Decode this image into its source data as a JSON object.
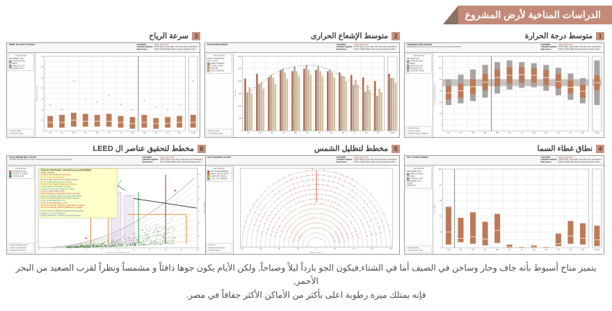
{
  "page_title": "الدراسات المناخية لأرض المشروع",
  "caption": {
    "line1": "يتميز مناخ أسيوط بأنه جاف وحار وساخن في الصيف أما في الشتاء,فيكون الجو بارداً ليلاً وصباحاً, ولكن الأيام يكون جوها دافئاً و مشمساً ونظراً لقرب الصعيد من البحر الأحمر,",
    "line2": "فإنه يمتلك ميزة رطوبة اعلى بأكثر من الأماكن الأكثر جفافاً في مصر."
  },
  "theme": {
    "ribbon": "#c48a79",
    "ribbon_triangle": "#8c7165",
    "badge": "#c8937f",
    "bar_orange": "#bd7a58",
    "bar_gray": "#a9a3a0",
    "comfort_band": "#c9c5c2"
  },
  "location_block": {
    "location_label": "LOCATION:",
    "location": "Asyut, Asyut, EGY",
    "latlon_label": "Latitude/Longitude:",
    "latlon": "27.05° North, 31.02° East, Time Zone from Greenwich 2",
    "source_label": "Data Source:",
    "source": "ETMY 623930 WMO Station Number, Elevation 226 ft"
  },
  "chart_data": [
    {
      "number": "1",
      "title_ar": "متوسط درجة الحرارة",
      "type": "range-bar",
      "header": {
        "title": "TEMPERATURE RANGE",
        "subtitle": "ASHRAE Standard 55 and Current Handbook of Fundamentals Model"
      },
      "legend": {
        "title": "LEGEND",
        "items": [
          {
            "t": "RECORD HIGH"
          },
          {
            "t": "AVERAGE HIGH",
            "c": "#bd7a58"
          },
          {
            "t": "MEAN",
            "c": "#ece3cb"
          },
          {
            "t": "AVERAGE LOW",
            "c": "#bd7a58"
          },
          {
            "t": "RECORD LOW",
            "c": "#a9a3a0"
          },
          {
            "t": "COMFORT ZONE",
            "c": "#c9c5c2"
          }
        ]
      },
      "options": [
        "Fit Time Scale",
        "Fit Temp. Scale",
        "Display Design Conditions"
      ],
      "ylabel": "DRY BULB TEMPERATURE, deg F",
      "ylim": [
        -10,
        120
      ],
      "ystep": 10,
      "label_every": 20,
      "comfort_band": [
        68,
        80
      ],
      "divider_after": 4,
      "categories": [
        "Jan",
        "Feb",
        "Mar",
        "Apr",
        "May",
        "Jun",
        "Jul",
        "Aug",
        "Sep",
        "Oct",
        "Nov",
        "Dec",
        "Annual"
      ],
      "record_high": [
        80,
        88,
        97,
        105,
        110,
        113,
        110,
        108,
        105,
        100,
        90,
        82,
        113
      ],
      "avg_high": [
        68,
        72,
        80,
        89,
        97,
        101,
        101,
        100,
        96,
        89,
        78,
        70,
        87
      ],
      "mean": [
        56,
        60,
        67,
        75,
        83,
        87,
        88,
        87,
        83,
        76,
        66,
        59,
        74
      ],
      "avg_low": [
        45,
        48,
        54,
        61,
        68,
        72,
        74,
        74,
        70,
        64,
        55,
        48,
        61
      ],
      "record_low": [
        35,
        38,
        42,
        48,
        55,
        62,
        65,
        66,
        60,
        52,
        44,
        38,
        35
      ]
    },
    {
      "number": "2",
      "title_ar": "متوسط الإشعاع الحرارى",
      "type": "grouped-bar",
      "header": {
        "title": "RADIATION RANGE",
        "subtitle": ""
      },
      "legend": {
        "title": "LEGEND",
        "items": [
          {
            "t": "HOURLY AVERAGES"
          },
          {
            "t": "DAILY TOTAL:"
          },
          {
            "t": "DIRECT NORMAL",
            "c": "#b4674e"
          },
          {
            "t": "GLOBAL HORIZ",
            "c": "#a9a79c"
          },
          {
            "t": "DIFFUSE",
            "c": "#d6b58d"
          },
          {
            "t": "TOTAL SURFACE",
            "c": "#cfc0a2"
          }
        ]
      },
      "options": [
        "Fit Time Scale",
        "Fit Radiation Scale"
      ],
      "ylabel": "Wh / sq.m",
      "ylim": [
        0,
        3000
      ],
      "ystep": 250,
      "label_every": 500,
      "line_series": 1,
      "categories": [
        "Jan",
        "Feb",
        "Mar",
        "Apr",
        "May",
        "Jun",
        "Jul",
        "Aug",
        "Sep",
        "Oct",
        "Nov",
        "Dec",
        "Annual"
      ],
      "series": [
        {
          "name": "DIRECT NORMAL",
          "color": "#b4674e",
          "values": [
            2100,
            2300,
            2150,
            2450,
            2400,
            2500,
            2450,
            2400,
            2350,
            2250,
            2150,
            2000,
            2300
          ]
        },
        {
          "name": "GLOBAL HORIZONTAL",
          "color": "#a9a79c",
          "values": [
            1550,
            1900,
            2250,
            2500,
            2600,
            2650,
            2600,
            2450,
            2200,
            1850,
            1550,
            1400,
            2130
          ]
        },
        {
          "name": "DIFFUSE",
          "color": "#d6b58d",
          "values": [
            1750,
            1950,
            2150,
            2350,
            2400,
            2450,
            2400,
            2350,
            2200,
            2050,
            1850,
            1700,
            2130
          ]
        },
        {
          "name": "TOTAL SURFACE",
          "color": "#cfc0a2",
          "values": [
            1500,
            1700,
            1900,
            2100,
            2200,
            2250,
            2200,
            2150,
            2000,
            1850,
            1650,
            1550,
            1920
          ]
        }
      ]
    },
    {
      "number": "3",
      "title_ar": "سرعة الرياح",
      "type": "range-bar",
      "header": {
        "title": "WIND VELOCITY RANGE",
        "subtitle": ""
      },
      "legend": {
        "title": "LEGEND",
        "items": [
          {
            "t": "RECORDED HIGH"
          },
          {
            "t": "AVERAGE HIGH",
            "c": "#bd7a58"
          },
          {
            "t": "MEAN",
            "c": "#ece3cb"
          },
          {
            "t": "AVERAGE LOW",
            "c": "#bd7a58"
          },
          {
            "t": "RECORDED LOW"
          }
        ]
      },
      "options": [
        "Fit Time Scale",
        "Fit Velocity Scale"
      ],
      "ylabel": "WIND VELOCITY, mph",
      "ylim": [
        0,
        70
      ],
      "ystep": 5,
      "label_every": 10,
      "comfort_band": null,
      "divider_after": 8,
      "categories": [
        "Jan",
        "Feb",
        "Mar",
        "Apr",
        "May",
        "Jun",
        "Jul",
        "Aug",
        "Sep",
        "Oct",
        "Nov",
        "Dec",
        "Annual"
      ],
      "record_high": null,
      "record_low": null,
      "avg_high": [
        14,
        15,
        17,
        16,
        15,
        16,
        14,
        13,
        15,
        12,
        13,
        14,
        15
      ],
      "mean": [
        8,
        8,
        10,
        9,
        9,
        9,
        8,
        7,
        8,
        7,
        7,
        8,
        8
      ],
      "avg_low": [
        3,
        3,
        4,
        4,
        4,
        4,
        3,
        2,
        3,
        2,
        3,
        3,
        3
      ],
      "dots": [
        24,
        20,
        47,
        30,
        27,
        33,
        25,
        20,
        28,
        22,
        20,
        24,
        47
      ]
    },
    {
      "number": "4",
      "title_ar": "نطاق غطاء السما",
      "type": "range-bar",
      "header": {
        "title": "SKY COVER RANGE",
        "subtitle": ""
      },
      "legend": {
        "title": "LEGEND",
        "items": [
          {
            "t": "RECORDED HIGH"
          },
          {
            "t": "AVERAGE HIGH",
            "c": "#bd7a58"
          },
          {
            "t": "MEAN",
            "c": "#ece3cb"
          },
          {
            "t": "AVERAGE LOW",
            "c": "#bd7a58"
          },
          {
            "t": "RECORDED LOW"
          },
          {
            "t": "CLEAR"
          },
          {
            "t": "OVERCAST"
          }
        ]
      },
      "options": [
        "Fit Time Scale",
        "Fit Sky Cover Scale"
      ],
      "ylabel": "SKY COVER, %",
      "ylim": [
        0,
        100
      ],
      "ystep": 10,
      "label_every": 20,
      "comfort_band": null,
      "divider_after": 1,
      "categories": [
        "Jan",
        "Feb",
        "Mar",
        "Apr",
        "May",
        "Jun",
        "Jul",
        "Aug",
        "Sep",
        "Oct",
        "Nov",
        "Dec",
        "Annual"
      ],
      "record_high": null,
      "record_low": null,
      "avg_high": [
        52,
        38,
        45,
        33,
        43,
        4,
        1,
        3,
        1,
        18,
        34,
        31,
        28
      ],
      "mean": [
        20,
        12,
        14,
        11,
        22,
        1,
        0,
        1,
        0,
        5,
        15,
        12,
        10
      ],
      "avg_low": [
        4,
        7,
        5,
        3,
        6,
        0,
        0,
        0,
        0,
        2,
        5,
        4,
        2
      ]
    },
    {
      "number": "5",
      "title_ar": "مخطط لتظليل الشمس",
      "type": "sun-path",
      "header": {
        "title": "SUN SHADING CHART",
        "subtitle": ""
      },
      "legend": {
        "title": "LEGEND",
        "items": [
          {
            "t": "HOT: SHADE NEEDED",
            "c": "#c23b2a"
          },
          {
            "t": "WARM: SHADE HELPS",
            "c": "#d96b2f"
          },
          {
            "t": "COMFORT: SUN OK",
            "c": "#ddb33c"
          },
          {
            "t": "COOL: SUN NEEDED",
            "c": "#888888"
          }
        ]
      },
      "options": [
        "All Hours",
        "Display Sun Positions",
        "Overlay Months"
      ],
      "xlabel": "BEARING (degrees)",
      "xticks": [
        -120,
        -90,
        -60,
        -30,
        0,
        30,
        60,
        90,
        120
      ]
    },
    {
      "number": "6",
      "title_ar": "مخطط لتحقيق عناصر ال LEED",
      "type": "psychrometric",
      "header": {
        "title": "PSYCHROMETRIC CHART",
        "subtitle": "ASHRAE Standard 55 and Current Handbook of Fundamentals Model using PMV"
      },
      "legend": {
        "title": "LEGEND",
        "items": [
          {
            "t": "COMFORT ZONE",
            "c": "#d2691e"
          },
          {
            "t": "STRATEGY ZONES",
            "c": "#148f77"
          },
          {
            "t": "HOURLY DATA",
            "c": "#3f7d36"
          }
        ]
      },
      "options": [
        "Display Strategy Zones",
        "Show Comfort Model",
        "Display Hourly Data"
      ],
      "xlabel": "DRY BULB TEMPERATURE, deg F",
      "xticks": [
        20,
        30,
        40,
        50,
        60,
        70,
        80,
        90,
        100,
        110,
        120
      ],
      "ylabel_right": "HUMIDITY RATIO",
      "strategies_head": "DESIGN STRATEGIES: JANUARY through DECEMBER",
      "strategies": [
        {
          "t": "4.3%  1 Comfort",
          "c": "#333333"
        },
        {
          "t": "13.5%  2 Sun Shading of Windows",
          "c": "#c0392b"
        },
        {
          "t": "9.1%  3 High Thermal Mass",
          "c": "#b7950b"
        },
        {
          "t": "12.5%  4 High Thermal Mass Night Flushed",
          "c": "#8e44ad"
        },
        {
          "t": "27.7%  5 Direct Evaporative Cooling",
          "c": "#148f77"
        },
        {
          "t": "35.8%  6 Two-Stage Evaporative Cooling",
          "c": "#d35400"
        },
        {
          "t": "7.2%  7 Natural Ventilation Cooling",
          "c": "#1e8449"
        },
        {
          "t": "2.1%  8 Fan-Forced Ventilation Cooling",
          "c": "#2e86c1"
        },
        {
          "t": "21.0%  9 Internal Heat Gain",
          "c": "#6c3483"
        },
        {
          "t": "8.5%  10 Passive Solar Direct Gain Low Mass",
          "c": "#c2185b"
        },
        {
          "t": "12.7%  11 Passive Solar Direct Gain High Mass",
          "c": "#00838f"
        },
        {
          "t": "0.0%  12 Wind Protection of Outdoor Spaces",
          "c": "#555555"
        },
        {
          "t": "0.0%  13 Humidification Only",
          "c": "#2e86c1"
        },
        {
          "t": "0.2%  14 Dehumidification Only",
          "c": "#c2185b"
        },
        {
          "t": "38.4%  15 Cooling, add Dehumidification if needed",
          "c": "#c62828"
        },
        {
          "t": "10.1%  16 Heating, add Humidification if needed",
          "c": "#c0392b"
        }
      ],
      "notes": [
        "Comfort Model: ASHRAE Standard 55 using PMV",
        "Adaptive Comfort Ventilation",
        "Design Strategies: January through December"
      ]
    }
  ]
}
